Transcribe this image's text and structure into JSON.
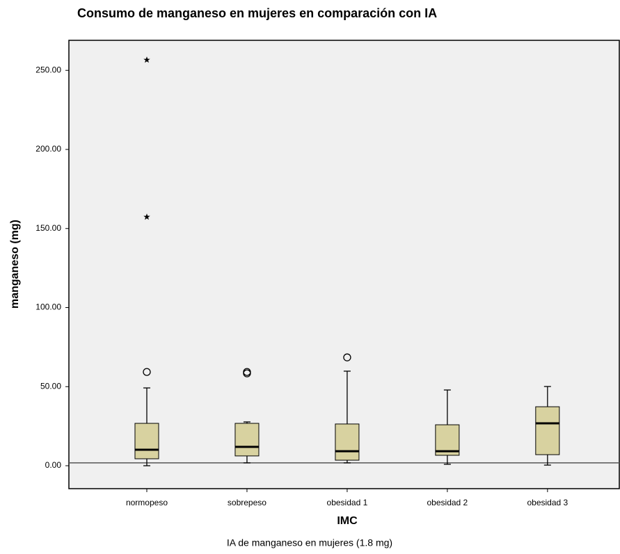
{
  "chart_data": {
    "type": "box",
    "title": "Consumo de manganeso en mujeres en comparación con IA",
    "y_label": "manganeso (mg)",
    "x_label": "IMC",
    "note": "IA de manganeso en mujeres (1.8 mg)",
    "reference_line": 1.8,
    "color": "#d8d2a0",
    "background": "#f0f0f0",
    "categories": [
      "normopeso",
      "sobrepeso",
      "obesidad 1",
      "obesidad 2",
      "obesidad 3"
    ],
    "boxes": [
      {
        "whisker_low": 0,
        "q1": 4.4,
        "median": 10.1,
        "q3": 26.8,
        "whisker_high": 49.2,
        "outliers": [
          59.3
        ],
        "extremes": [
          157.3,
          256.6
        ]
      },
      {
        "whisker_low": 1.8,
        "q1": 6.2,
        "median": 11.9,
        "q3": 26.8,
        "whisker_high": 27.7,
        "outliers": [
          58.4,
          59.3
        ],
        "extremes": []
      },
      {
        "whisker_low": 1.8,
        "q1": 3.5,
        "median": 9.2,
        "q3": 26.4,
        "whisker_high": 59.8,
        "outliers": [
          68.5
        ],
        "extremes": []
      },
      {
        "whisker_low": 0.9,
        "q1": 6.6,
        "median": 9.2,
        "q3": 25.9,
        "whisker_high": 47.9,
        "outliers": [],
        "extremes": []
      },
      {
        "whisker_low": 0.4,
        "q1": 7.0,
        "median": 26.8,
        "q3": 37.3,
        "whisker_high": 50.1,
        "outliers": [],
        "extremes": []
      }
    ],
    "ylim": [
      -14.5,
      269
    ],
    "yticks": [
      {
        "value": 0,
        "label": "0.00"
      },
      {
        "value": 50,
        "label": "50.00"
      },
      {
        "value": 100,
        "label": "100.00"
      },
      {
        "value": 150,
        "label": "150.00"
      },
      {
        "value": 200,
        "label": "200.00"
      },
      {
        "value": 250,
        "label": "250.00"
      }
    ]
  }
}
